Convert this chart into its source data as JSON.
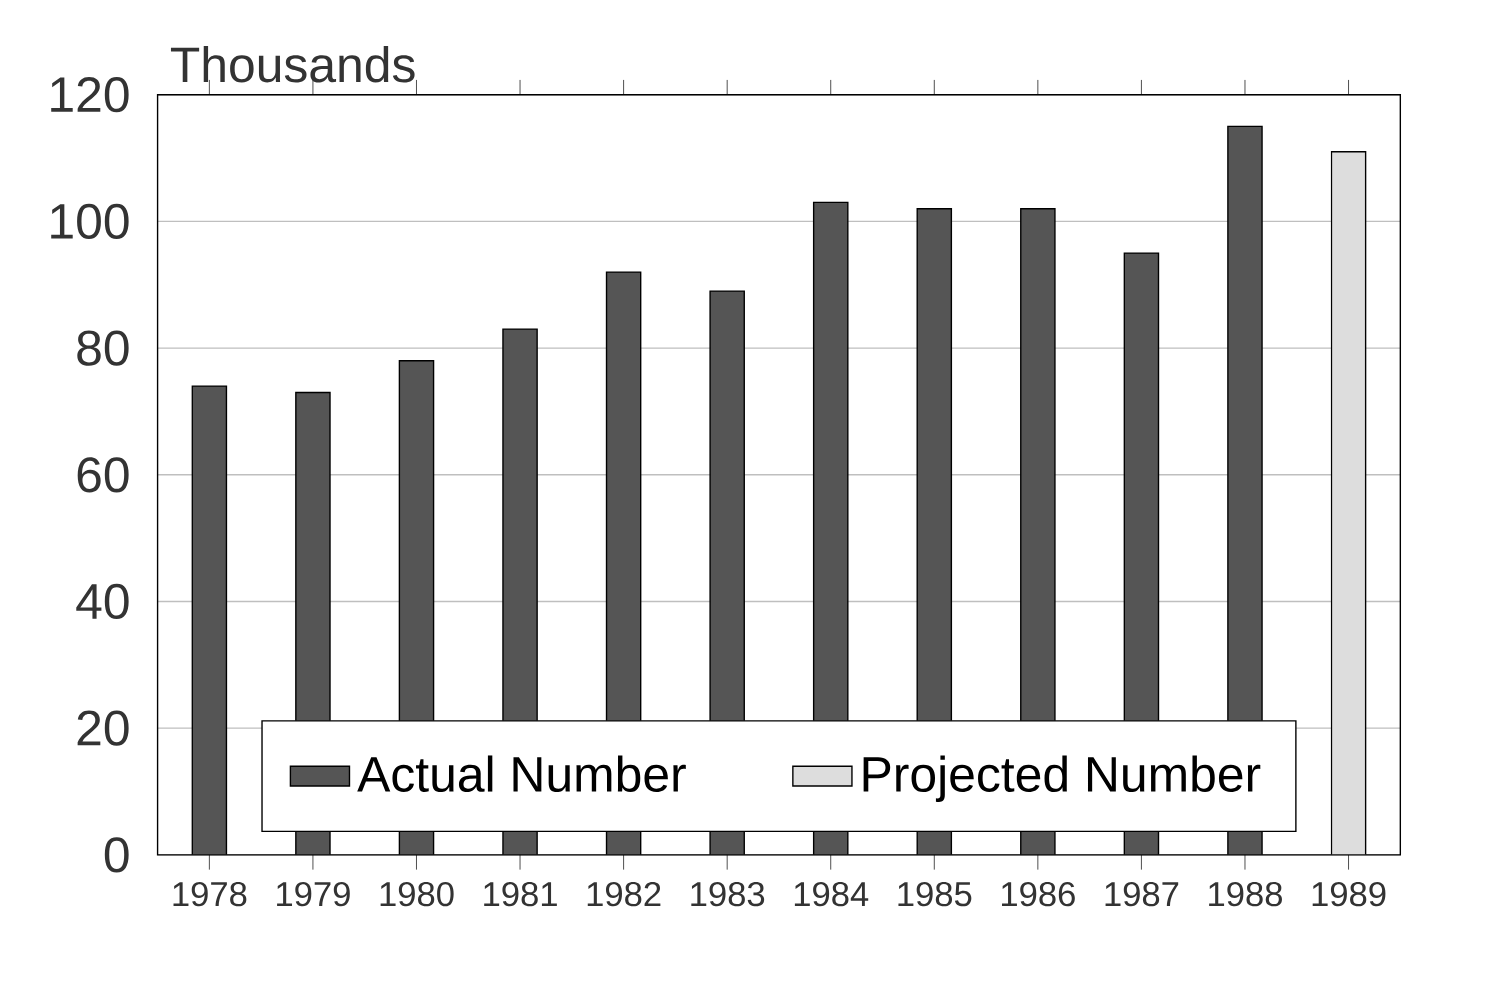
{
  "chart_data": {
    "type": "bar",
    "ylabel": "Thousands",
    "categories": [
      "1978",
      "1979",
      "1980",
      "1981",
      "1982",
      "1983",
      "1984",
      "1985",
      "1986",
      "1987",
      "1988",
      "1989"
    ],
    "series": [
      {
        "name": "Actual Number",
        "color": "#555555",
        "values": [
          74,
          73,
          78,
          83,
          92,
          89,
          103,
          102,
          102,
          95,
          115,
          null
        ]
      },
      {
        "name": "Projected Number",
        "color": "#dddddd",
        "values": [
          null,
          null,
          null,
          null,
          null,
          null,
          null,
          null,
          null,
          null,
          null,
          111
        ]
      }
    ],
    "ylim": [
      0,
      120
    ],
    "yticks": [
      0,
      20,
      40,
      60,
      80,
      100,
      120
    ],
    "grid": "y",
    "legend": "bottom"
  }
}
